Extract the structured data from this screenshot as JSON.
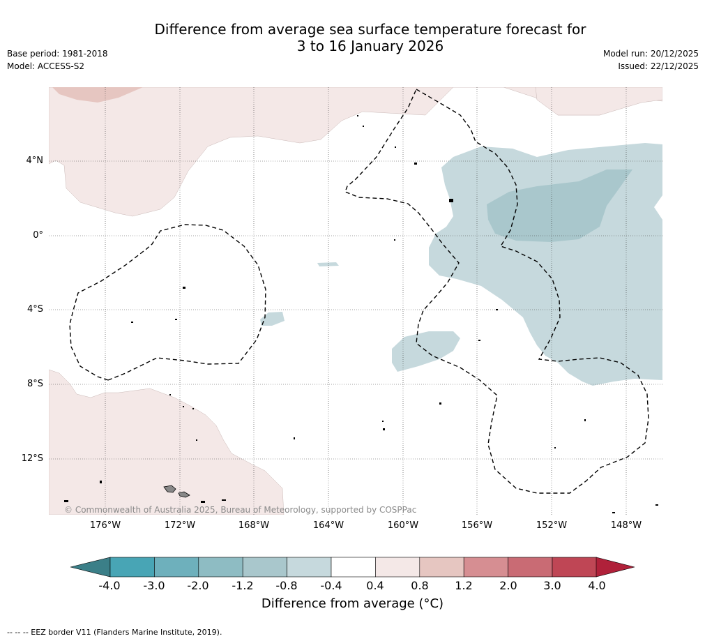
{
  "title": {
    "line1": "Difference from average sea surface temperature forecast for",
    "line2": "3 to 16 January 2026"
  },
  "meta": {
    "base_period": "Base period: 1981-2018",
    "model": "Model: ACCESS-S2",
    "model_run": "Model run: 20/12/2025",
    "issued": "Issued: 22/12/2025"
  },
  "axes": {
    "lat_labels": [
      "4°N",
      "0°",
      "4°S",
      "8°S",
      "12°S"
    ],
    "lon_labels": [
      "176°W",
      "172°W",
      "168°W",
      "164°W",
      "160°W",
      "156°W",
      "152°W",
      "148°W"
    ]
  },
  "copyright": "© Commonwealth of Australia 2025, Bureau of Meteorology, supported by COSPPac",
  "colorbar": {
    "ticks": [
      "-4.0",
      "-3.0",
      "-2.0",
      "-1.2",
      "-0.8",
      "-0.4",
      "0.4",
      "0.8",
      "1.2",
      "2.0",
      "3.0",
      "4.0"
    ],
    "colors": [
      "#48a5b5",
      "#6eb0bc",
      "#8ebcc3",
      "#a9c7cc",
      "#c6d9dd",
      "#ffffff",
      "#f4e8e7",
      "#e6c6c1",
      "#d68e92",
      "#c96b74",
      "#bf4655"
    ],
    "under_color": "#3b7f88",
    "over_color": "#b0213a",
    "label": "Difference from average (°C)"
  },
  "footnote": "--  --  -- EEZ border V11 (Flanders Marine Institute, 2019)."
}
